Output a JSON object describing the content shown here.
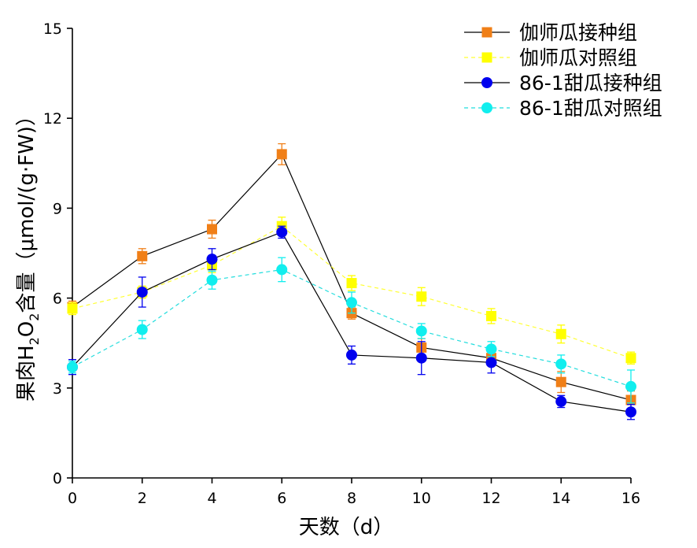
{
  "chart_data": {
    "type": "line",
    "title": "",
    "xlabel": "天数（d）",
    "ylabel_parts": {
      "prefix": "果肉H",
      "sub1": "2",
      "mid": "O",
      "sub2": "2",
      "suffix": "含量（μmol/(g·FW)）"
    },
    "x": [
      0,
      2,
      4,
      6,
      8,
      10,
      12,
      14,
      16
    ],
    "x_ticks": [
      "0",
      "2",
      "4",
      "6",
      "8",
      "10",
      "12",
      "14",
      "16"
    ],
    "xlim": [
      0,
      16
    ],
    "y_ticks": [
      "0",
      "3",
      "6",
      "9",
      "12",
      "15"
    ],
    "ylim": [
      0,
      15
    ],
    "grid": false,
    "legend_position": "top-right",
    "series": [
      {
        "name": "伽师瓜接种组",
        "values": [
          5.7,
          7.4,
          8.3,
          10.8,
          5.5,
          4.35,
          4.0,
          3.2,
          2.6
        ],
        "errors": [
          0.2,
          0.25,
          0.3,
          0.35,
          0.2,
          0.3,
          0.25,
          0.35,
          0.3
        ],
        "color": "#f07f17",
        "line_color": "#000000",
        "dashed": false,
        "marker": "square"
      },
      {
        "name": "伽师瓜对照组",
        "values": [
          5.65,
          6.2,
          7.1,
          8.4,
          6.5,
          6.05,
          5.4,
          4.8,
          4.0
        ],
        "errors": [
          0.2,
          0.2,
          0.25,
          0.3,
          0.25,
          0.3,
          0.25,
          0.3,
          0.2
        ],
        "color": "#ffff00",
        "line_color": "#ffff33",
        "dashed": true,
        "marker": "square"
      },
      {
        "name": "86-1甜瓜接种组",
        "values": [
          3.7,
          6.2,
          7.3,
          8.2,
          4.1,
          4.0,
          3.85,
          2.55,
          2.2
        ],
        "errors": [
          0.25,
          0.5,
          0.35,
          0.2,
          0.3,
          0.55,
          0.35,
          0.2,
          0.25
        ],
        "color": "#0000ee",
        "line_color": "#000000",
        "dashed": false,
        "marker": "circle"
      },
      {
        "name": "86-1甜瓜对照组",
        "values": [
          3.7,
          4.95,
          6.6,
          6.95,
          5.85,
          4.9,
          4.3,
          3.8,
          3.05
        ],
        "errors": [
          0.2,
          0.3,
          0.3,
          0.4,
          0.35,
          0.25,
          0.25,
          0.3,
          0.55
        ],
        "color": "#11eeee",
        "line_color": "#22dddd",
        "dashed": true,
        "marker": "circle"
      }
    ]
  }
}
